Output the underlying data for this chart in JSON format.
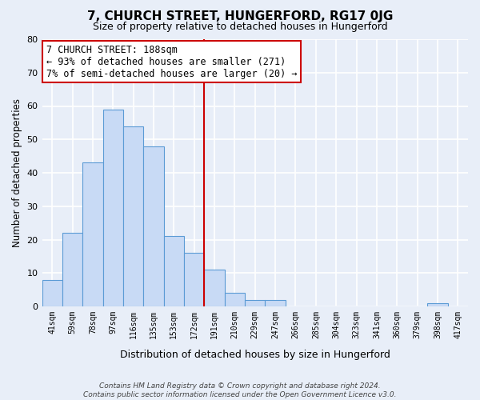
{
  "title": "7, CHURCH STREET, HUNGERFORD, RG17 0JG",
  "subtitle": "Size of property relative to detached houses in Hungerford",
  "xlabel": "Distribution of detached houses by size in Hungerford",
  "ylabel": "Number of detached properties",
  "bin_labels": [
    "41sqm",
    "59sqm",
    "78sqm",
    "97sqm",
    "116sqm",
    "135sqm",
    "153sqm",
    "172sqm",
    "191sqm",
    "210sqm",
    "229sqm",
    "247sqm",
    "266sqm",
    "285sqm",
    "304sqm",
    "323sqm",
    "341sqm",
    "360sqm",
    "379sqm",
    "398sqm",
    "417sqm"
  ],
  "bar_values": [
    8,
    22,
    43,
    59,
    54,
    48,
    21,
    16,
    11,
    4,
    2,
    2,
    0,
    0,
    0,
    0,
    0,
    0,
    0,
    1,
    0
  ],
  "bar_color": "#c8daf5",
  "bar_edge_color": "#5b9bd5",
  "vline_x": 8.0,
  "vline_color": "#cc0000",
  "ylim": [
    0,
    80
  ],
  "annotation_title": "7 CHURCH STREET: 188sqm",
  "annotation_line1": "← 93% of detached houses are smaller (271)",
  "annotation_line2": "7% of semi-detached houses are larger (20) →",
  "annotation_box_color": "#ffffff",
  "annotation_box_edge": "#cc0000",
  "footer_line1": "Contains HM Land Registry data © Crown copyright and database right 2024.",
  "footer_line2": "Contains public sector information licensed under the Open Government Licence v3.0.",
  "background_color": "#e8eef8",
  "grid_color": "#ffffff",
  "title_fontsize": 11,
  "subtitle_fontsize": 9
}
